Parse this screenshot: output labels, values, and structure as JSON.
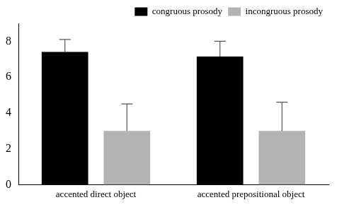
{
  "chart_data": {
    "type": "bar",
    "categories": [
      "accented direct object",
      "accented prepositional object"
    ],
    "series": [
      {
        "name": "congruous prosody",
        "color": "#000000",
        "values": [
          7.4,
          7.15
        ],
        "errors": [
          0.7,
          0.85
        ]
      },
      {
        "name": "incongruous prosody",
        "color": "#b3b3b3",
        "values": [
          3.0,
          3.0
        ],
        "errors": [
          1.5,
          1.6
        ]
      }
    ],
    "ylim": [
      0,
      9
    ],
    "yticks": [
      0,
      2,
      4,
      6,
      8
    ],
    "grid": false,
    "legend": "top right"
  }
}
